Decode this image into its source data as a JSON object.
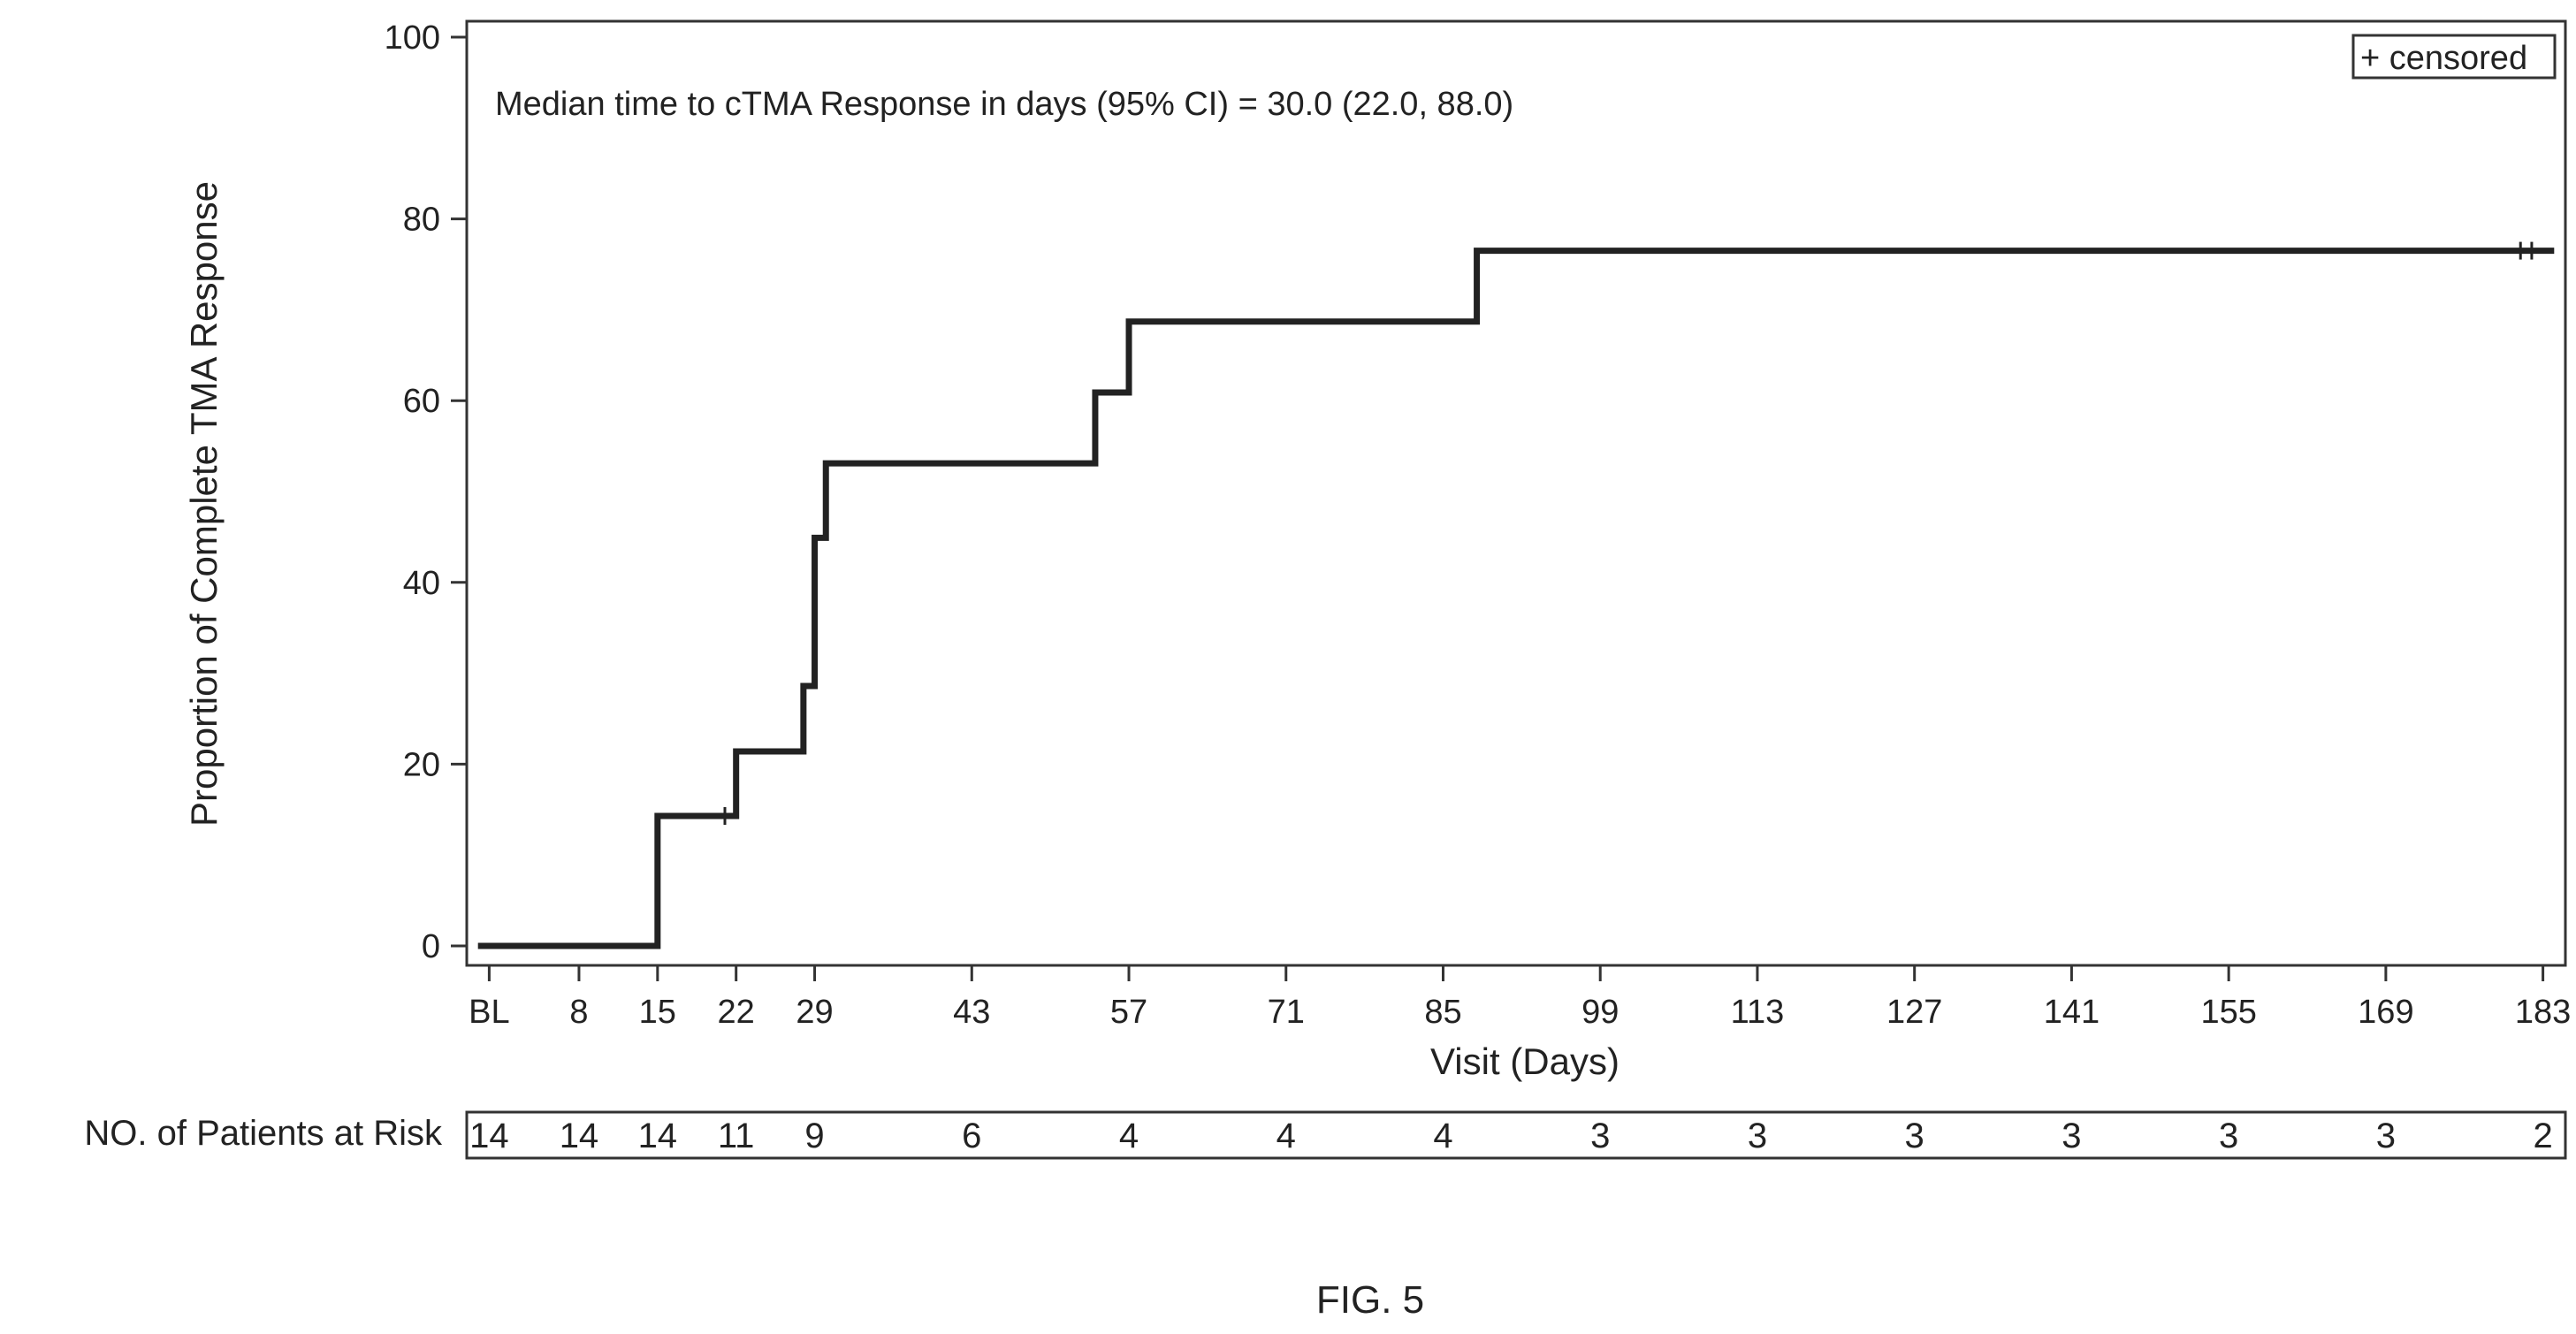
{
  "chart_data": {
    "type": "line",
    "annotation": "Median time to cTMA Response in days (95% CI) = 30.0 (22.0, 88.0)",
    "xlabel": "Visit (Days)",
    "ylabel": "Proportion of Complete TMA Response",
    "ylim": [
      0,
      100
    ],
    "xlim": [
      -2,
      185
    ],
    "y_ticks": [
      0,
      20,
      40,
      60,
      80,
      100
    ],
    "x_ticks": [
      {
        "value": 0,
        "label": "BL"
      },
      {
        "value": 8,
        "label": "8"
      },
      {
        "value": 15,
        "label": "15"
      },
      {
        "value": 22,
        "label": "22"
      },
      {
        "value": 29,
        "label": "29"
      },
      {
        "value": 43,
        "label": "43"
      },
      {
        "value": 57,
        "label": "57"
      },
      {
        "value": 71,
        "label": "71"
      },
      {
        "value": 85,
        "label": "85"
      },
      {
        "value": 99,
        "label": "99"
      },
      {
        "value": 113,
        "label": "113"
      },
      {
        "value": 127,
        "label": "127"
      },
      {
        "value": 141,
        "label": "141"
      },
      {
        "value": 155,
        "label": "155"
      },
      {
        "value": 169,
        "label": "169"
      },
      {
        "value": 183,
        "label": "183"
      }
    ],
    "grid": false,
    "legend": {
      "label": "+ censored",
      "placement": "top-right"
    },
    "series": [
      {
        "step": true,
        "x": [
          -1,
          15,
          22,
          28,
          29,
          30,
          54,
          57,
          88,
          184
        ],
        "y": [
          0,
          14.3,
          21.4,
          28.6,
          44.9,
          53.1,
          60.9,
          68.7,
          76.5,
          76.5
        ]
      }
    ],
    "censored": [
      {
        "x": 21,
        "y": 14.3
      },
      {
        "x": 181,
        "y": 76.5
      },
      {
        "x": 182,
        "y": 76.5
      }
    ],
    "risk_table": {
      "label": "NO. of Patients at Risk",
      "values": [
        "14",
        "14",
        "14",
        "11",
        "9",
        "6",
        "4",
        "4",
        "4",
        "3",
        "3",
        "3",
        "3",
        "3",
        "3",
        "2"
      ]
    },
    "caption": "FIG. 5"
  }
}
